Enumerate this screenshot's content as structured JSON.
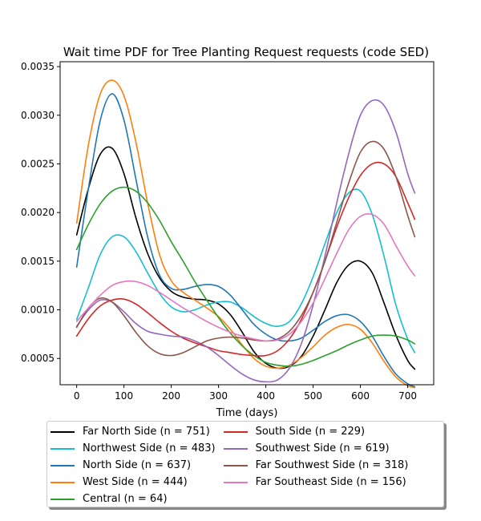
{
  "chart_data": {
    "type": "line",
    "title": "Wait time PDF for Tree Planting Request  requests (code SED)",
    "xlabel": "Time (days)",
    "ylabel": "",
    "xlim": [
      -35,
      755
    ],
    "ylim": [
      0.00023,
      0.00355
    ],
    "x_ticks": [
      0,
      100,
      200,
      300,
      400,
      500,
      600,
      700
    ],
    "y_ticks": [
      0.0005,
      0.001,
      0.0015,
      0.002,
      0.0025,
      0.003,
      0.0035
    ],
    "y_tick_labels": [
      "0.0005",
      "0.0010",
      "0.0015",
      "0.0020",
      "0.0025",
      "0.0030",
      "0.0035"
    ],
    "legend_position": "below-center",
    "grid": false,
    "x": [
      0,
      25,
      50,
      75,
      100,
      125,
      150,
      175,
      200,
      225,
      250,
      275,
      300,
      325,
      350,
      375,
      400,
      425,
      450,
      475,
      500,
      525,
      550,
      575,
      600,
      625,
      650,
      675,
      700,
      715
    ],
    "series": [
      {
        "name": "Far North Side (n = 751)",
        "color": "#000000",
        "values": [
          0.00177,
          0.00225,
          0.0026,
          0.00266,
          0.0024,
          0.00195,
          0.00158,
          0.00133,
          0.00119,
          0.00113,
          0.00111,
          0.0011,
          0.00106,
          0.00095,
          0.00077,
          0.00057,
          0.00045,
          0.0004,
          0.00042,
          0.00052,
          0.00073,
          0.001,
          0.00128,
          0.00146,
          0.0015,
          0.00138,
          0.00107,
          0.00074,
          0.00048,
          0.00039
        ]
      },
      {
        "name": "Northwest Side (n = 483)",
        "color": "#17becf",
        "values": [
          0.0009,
          0.00123,
          0.00157,
          0.00175,
          0.00175,
          0.0016,
          0.00138,
          0.00117,
          0.00103,
          0.00098,
          0.001,
          0.00105,
          0.00108,
          0.00108,
          0.00102,
          0.00093,
          0.00086,
          0.00083,
          0.00088,
          0.00106,
          0.00134,
          0.00168,
          0.002,
          0.0022,
          0.00222,
          0.00198,
          0.00155,
          0.00105,
          0.0007,
          0.00056
        ]
      },
      {
        "name": "North Side (n = 637)",
        "color": "#1f77b4",
        "values": [
          0.00144,
          0.00225,
          0.00295,
          0.00322,
          0.00295,
          0.00235,
          0.00175,
          0.00136,
          0.00122,
          0.00121,
          0.00124,
          0.00126,
          0.00124,
          0.00115,
          0.001,
          0.00085,
          0.00075,
          0.00069,
          0.00068,
          0.00071,
          0.00079,
          0.00088,
          0.00094,
          0.00095,
          0.00088,
          0.00073,
          0.00052,
          0.00034,
          0.00024,
          0.00021
        ]
      },
      {
        "name": "West Side (n = 444)",
        "color": "#ff7f0e",
        "values": [
          0.00189,
          0.0027,
          0.00322,
          0.00336,
          0.0032,
          0.00273,
          0.0021,
          0.00157,
          0.0013,
          0.00118,
          0.0011,
          0.00102,
          0.00093,
          0.0008,
          0.00064,
          0.0005,
          0.00042,
          0.0004,
          0.00043,
          0.00051,
          0.00062,
          0.00074,
          0.00082,
          0.00085,
          0.0008,
          0.00066,
          0.00047,
          0.00031,
          0.00022,
          0.0002
        ]
      },
      {
        "name": "Central (n = 64)",
        "color": "#2ca02c",
        "values": [
          0.00162,
          0.00188,
          0.00209,
          0.00222,
          0.00226,
          0.00222,
          0.0021,
          0.00192,
          0.0017,
          0.0015,
          0.00129,
          0.0011,
          0.00092,
          0.00076,
          0.00063,
          0.00053,
          0.00046,
          0.00043,
          0.00042,
          0.00044,
          0.00048,
          0.00053,
          0.00058,
          0.00064,
          0.00069,
          0.00073,
          0.00074,
          0.00073,
          0.00069,
          0.00065
        ]
      },
      {
        "name": "South Side (n = 229)",
        "color": "#d62728",
        "values": [
          0.00073,
          0.00091,
          0.00104,
          0.0011,
          0.00111,
          0.00106,
          0.00097,
          0.00087,
          0.00078,
          0.00071,
          0.00066,
          0.00062,
          0.00058,
          0.00056,
          0.00054,
          0.00053,
          0.00053,
          0.00058,
          0.0007,
          0.0009,
          0.00118,
          0.0015,
          0.00185,
          0.00215,
          0.00238,
          0.0025,
          0.0025,
          0.00237,
          0.0021,
          0.00193
        ]
      },
      {
        "name": "Southwest Side (n = 619)",
        "color": "#9467bd",
        "values": [
          0.00083,
          0.001,
          0.0011,
          0.00108,
          0.00098,
          0.00086,
          0.00078,
          0.00075,
          0.00073,
          0.00072,
          0.00068,
          0.00062,
          0.00053,
          0.00043,
          0.00034,
          0.00028,
          0.00026,
          0.00028,
          0.0004,
          0.00065,
          0.00105,
          0.00155,
          0.0021,
          0.0026,
          0.003,
          0.00315,
          0.0031,
          0.00283,
          0.0024,
          0.0022
        ]
      },
      {
        "name": "Far Southwest Side (n = 318)",
        "color": "#8c564b",
        "values": [
          0.00082,
          0.00102,
          0.00112,
          0.00108,
          0.00094,
          0.00077,
          0.00063,
          0.00055,
          0.00053,
          0.00056,
          0.00062,
          0.00068,
          0.00071,
          0.00072,
          0.00071,
          0.00069,
          0.00068,
          0.0007,
          0.00078,
          0.00094,
          0.00118,
          0.0015,
          0.0019,
          0.0023,
          0.00262,
          0.00273,
          0.00265,
          0.00237,
          0.00197,
          0.00175
        ]
      },
      {
        "name": "Far Southeast Side (n = 156)",
        "color": "#e377c2",
        "values": [
          0.00088,
          0.00102,
          0.00115,
          0.00125,
          0.00129,
          0.00129,
          0.00125,
          0.00118,
          0.0011,
          0.00102,
          0.00095,
          0.00088,
          0.00082,
          0.00077,
          0.00073,
          0.0007,
          0.00068,
          0.00069,
          0.00075,
          0.00088,
          0.00107,
          0.00132,
          0.00158,
          0.00182,
          0.00196,
          0.00198,
          0.00188,
          0.00166,
          0.00145,
          0.00135
        ]
      }
    ]
  }
}
